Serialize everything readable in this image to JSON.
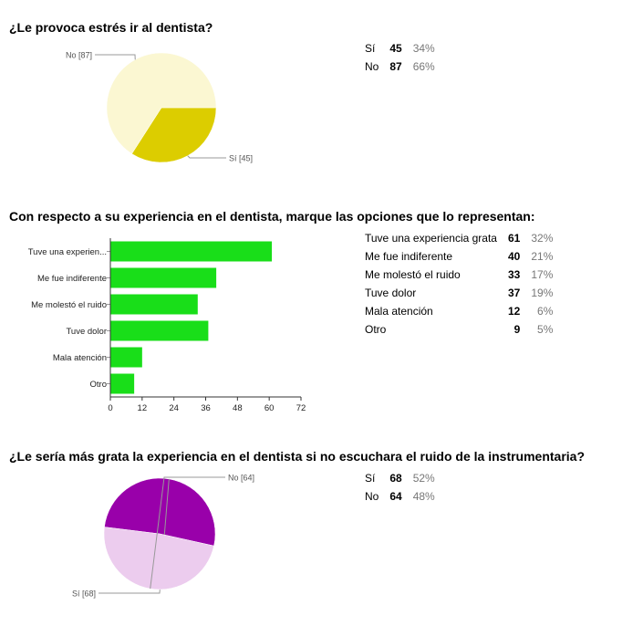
{
  "chart_data": [
    {
      "type": "pie",
      "title": "¿Le provoca estrés ir al dentista?",
      "slices": [
        {
          "label": "Sí",
          "count": 45,
          "pct": "34%",
          "callout": "Sí [45]",
          "color": "#dccd00"
        },
        {
          "label": "No",
          "count": 87,
          "pct": "66%",
          "callout": "No [87]",
          "color": "#fbf7d2"
        }
      ]
    },
    {
      "type": "bar",
      "orientation": "horizontal",
      "title": "Con respecto a su experiencia en el dentista, marque las opciones que lo representan:",
      "categories": [
        "Tuve una experien...",
        "Me fue indiferente",
        "Me molestó el ruido",
        "Tuve dolor",
        "Mala atención",
        "Otro"
      ],
      "values": [
        61,
        40,
        33,
        37,
        12,
        9
      ],
      "xlim": [
        0,
        72
      ],
      "xticks": [
        0,
        12,
        24,
        36,
        48,
        60,
        72
      ],
      "color": "#19de19",
      "table": [
        {
          "label": "Tuve una experiencia grata",
          "count": 61,
          "pct": "32%"
        },
        {
          "label": "Me fue indiferente",
          "count": 40,
          "pct": "21%"
        },
        {
          "label": "Me molestó el ruido",
          "count": 33,
          "pct": "17%"
        },
        {
          "label": "Tuve dolor",
          "count": 37,
          "pct": "19%"
        },
        {
          "label": "Mala atención",
          "count": 12,
          "pct": "6%"
        },
        {
          "label": "Otro",
          "count": 9,
          "pct": "5%"
        }
      ]
    },
    {
      "type": "pie",
      "title": "¿Le sería más grata la experiencia en el dentista si no escuchara el ruido de la instrumentaria?",
      "slices": [
        {
          "label": "Sí",
          "count": 68,
          "pct": "52%",
          "callout": "Sí [68]",
          "color": "#9900aa"
        },
        {
          "label": "No",
          "count": 64,
          "pct": "48%",
          "callout": "No [64]",
          "color": "#ecccee"
        }
      ]
    }
  ]
}
